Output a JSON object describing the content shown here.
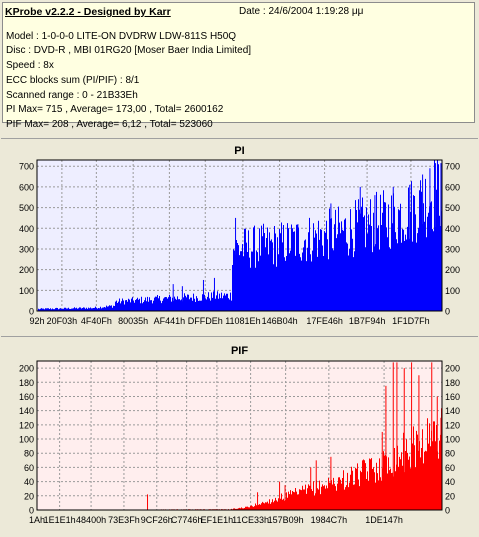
{
  "info": {
    "title": "KProbe v2.2.2 - Designed by Karr",
    "date": "Date : 24/6/2004 1:19:28 μμ",
    "lines": [
      "Model : 1-0-0-0 LITE-ON DVDRW LDW-811S   H50Q",
      "Disc : DVD-R , MBI 01RG20   [Moser Baer India Limited]",
      "Speed : 8x",
      "ECC blocks sum (PI/PIF) : 8/1",
      "Scanned range : 0 - 21B33Eh",
      "PI Max= 715 , Average= 173,00 , Total= 2600162",
      "PIF Max= 208 , Average= 6,12 , Total= 523060"
    ]
  },
  "chart_data": [
    {
      "type": "bar",
      "title": "PI",
      "color": "#0000ff",
      "background": "#eeeeff",
      "ylim": [
        0,
        730
      ],
      "yticks": [
        0,
        100,
        200,
        300,
        400,
        500,
        600,
        700
      ],
      "ytick_labels": [
        "0",
        "100",
        "200",
        "300",
        "400",
        "500",
        "600",
        "700"
      ],
      "xlim": [
        0,
        2208574
      ],
      "xticks": [
        146,
        135683,
        323648,
        524341,
        721985,
        917504,
        1122846,
        1323012,
        1568326,
        1800084,
        2039159
      ],
      "xtick_labels": [
        "92h",
        "20F03h",
        "4F40Fh",
        "80035h",
        "AF441h",
        "DFFDEh",
        "11081Eh",
        "146B04h",
        "17FE46h",
        "1B7F94h",
        "1F1D7Fh"
      ],
      "profile": [
        [
          0,
          10
        ],
        [
          300000,
          15
        ],
        [
          420000,
          25
        ],
        [
          430000,
          45
        ],
        [
          700000,
          60
        ],
        [
          1060000,
          75
        ],
        [
          1070000,
          300
        ],
        [
          1300000,
          320
        ],
        [
          1600000,
          370
        ],
        [
          1900000,
          440
        ],
        [
          2050000,
          490
        ],
        [
          2208574,
          600
        ]
      ],
      "spikes": [
        [
          740000,
          130
        ],
        [
          790000,
          120
        ],
        [
          905000,
          150
        ],
        [
          965000,
          160
        ],
        [
          1080000,
          450
        ],
        [
          1180000,
          380
        ],
        [
          1420000,
          420
        ],
        [
          1600000,
          520
        ],
        [
          1760000,
          600
        ],
        [
          1840000,
          560
        ],
        [
          1940000,
          600
        ],
        [
          2030000,
          610
        ],
        [
          2100000,
          660
        ],
        [
          2140000,
          690
        ],
        [
          2170000,
          715
        ],
        [
          2200000,
          715
        ]
      ]
    },
    {
      "type": "bar",
      "title": "PIF",
      "color": "#ff0000",
      "background": "#ffeeee",
      "ylim": [
        0,
        210
      ],
      "yticks": [
        0,
        20,
        40,
        60,
        80,
        100,
        120,
        140,
        160,
        180,
        200
      ],
      "ytick_labels": [
        "0",
        "20",
        "40",
        "60",
        "80",
        "100",
        "120",
        "140",
        "160",
        "180",
        "200"
      ],
      "xlim": [
        0,
        2208574
      ],
      "xticks": [
        26,
        123361,
        294912,
        474111,
        653094,
        816014,
        980961,
        1164857,
        1355785,
        1591495,
        1892679
      ],
      "xtick_labels": [
        "1Ah",
        "1E1E1h",
        "48400h",
        "73E3Fh",
        "9CF26h",
        "C7746h",
        "EF1E1h",
        "11CE33h",
        "157B09h",
        "1984C7h",
        "1DE147h"
      ],
      "profile": [
        [
          0,
          0
        ],
        [
          1050000,
          1
        ],
        [
          1150000,
          4
        ],
        [
          1300000,
          15
        ],
        [
          1500000,
          30
        ],
        [
          1700000,
          45
        ],
        [
          1900000,
          65
        ],
        [
          2050000,
          90
        ],
        [
          2208574,
          110
        ]
      ],
      "spikes": [
        [
          600000,
          22
        ],
        [
          1200000,
          25
        ],
        [
          1320000,
          40
        ],
        [
          1350000,
          35
        ],
        [
          1490000,
          60
        ],
        [
          1520000,
          70
        ],
        [
          1600000,
          75
        ],
        [
          1880000,
          110
        ],
        [
          1900000,
          175
        ],
        [
          1940000,
          208
        ],
        [
          1960000,
          208
        ],
        [
          2000000,
          200
        ],
        [
          2040000,
          208
        ],
        [
          2080000,
          190
        ],
        [
          2150000,
          208
        ],
        [
          2180000,
          160
        ],
        [
          2200000,
          130
        ]
      ]
    }
  ]
}
